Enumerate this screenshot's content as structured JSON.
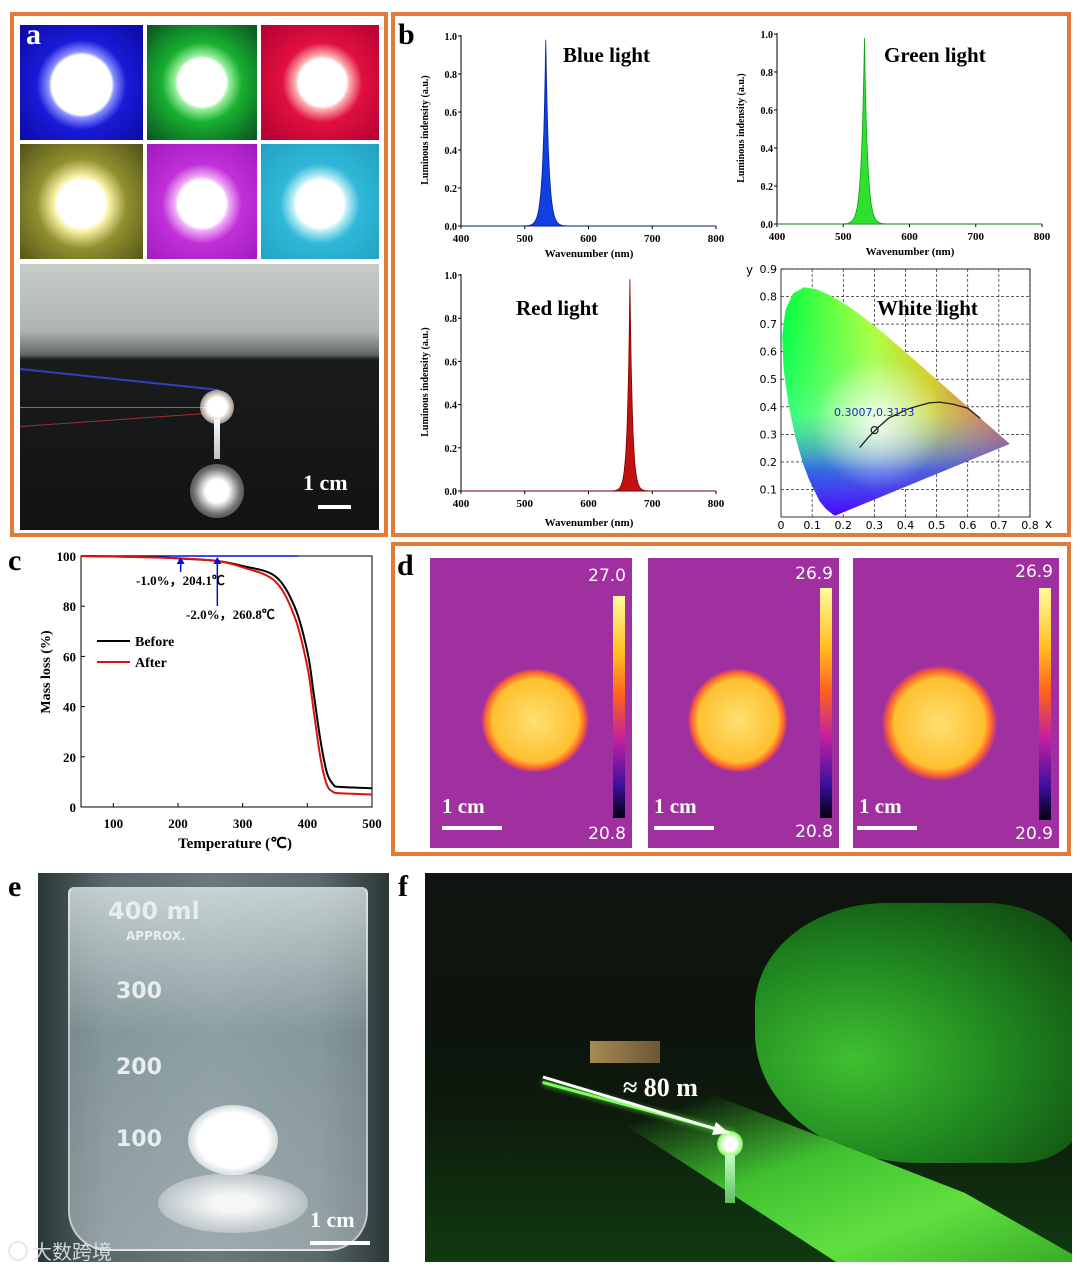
{
  "panels": {
    "a": {
      "label": "a",
      "scale": "1 cm"
    },
    "b": {
      "label": "b",
      "blue": {
        "title": "Blue light",
        "ylabel": "Luminous indensity (a.u.)",
        "xlabel": "Wavenumber (nm)"
      },
      "green": {
        "title": "Green light",
        "ylabel": "Luminous indensity (a.u.)",
        "xlabel": "Wavenumber (nm)"
      },
      "red": {
        "title": "Red light",
        "ylabel": "Luminous indensity (a.u.)",
        "xlabel": "Wavenumber (nm)"
      },
      "white": {
        "title": "White light",
        "coord": "0.3007,0.3153",
        "yaxis": "y",
        "xaxis": "x"
      }
    },
    "c": {
      "label": "c",
      "ylabel": "Mass loss (%)",
      "xlabel": "Temperature (℃)",
      "legend_before": "Before",
      "legend_after": "After",
      "ann1": "-1.0%，204.1℃",
      "ann2": "-2.0%，260.8℃"
    },
    "d": {
      "label": "d",
      "scale": "1 cm",
      "maps": [
        {
          "max": "27.0",
          "min": "20.8"
        },
        {
          "max": "26.9",
          "min": "20.8"
        },
        {
          "max": "26.9",
          "min": "20.9"
        }
      ]
    },
    "e": {
      "label": "e",
      "scale": "1 cm",
      "marks": [
        "400 ml",
        "APPROX.",
        "300",
        "200",
        "100"
      ]
    },
    "f": {
      "label": "f",
      "distance": "≈ 80 m"
    }
  },
  "watermark": "大数跨境",
  "colors": {
    "border": "#e07b39",
    "blue": "#1040e0",
    "green": "#30e030",
    "red": "#c01010"
  },
  "chart_data": [
    {
      "type": "line",
      "title": "Blue light",
      "xlabel": "Wavenumber (nm)",
      "ylabel": "Luminous indensity (a.u.)",
      "xlim": [
        400,
        800
      ],
      "ylim": [
        0,
        1.0
      ],
      "xticks": [
        "400",
        "500",
        "600",
        "700",
        "800"
      ],
      "yticks": [
        "0.0",
        "0.2",
        "0.4",
        "0.6",
        "0.8",
        "1.0"
      ],
      "series": [
        {
          "name": "Blue light",
          "peak": 533,
          "fwhm": 12,
          "height": 0.98
        }
      ]
    },
    {
      "type": "line",
      "title": "Green light",
      "xlabel": "Wavenumber (nm)",
      "ylabel": "Luminous indensity (a.u.)",
      "xlim": [
        400,
        800
      ],
      "ylim": [
        0,
        1.0
      ],
      "xticks": [
        "400",
        "500",
        "600",
        "700",
        "800"
      ],
      "yticks": [
        "0.0",
        "0.2",
        "0.4",
        "0.6",
        "0.8",
        "1.0"
      ],
      "series": [
        {
          "name": "Green light",
          "peak": 532,
          "fwhm": 12,
          "height": 0.98
        }
      ]
    },
    {
      "type": "line",
      "title": "Red light",
      "xlabel": "Wavenumber (nm)",
      "ylabel": "Luminous indensity (a.u.)",
      "xlim": [
        400,
        800
      ],
      "ylim": [
        0,
        1.0
      ],
      "xticks": [
        "400",
        "500",
        "600",
        "700",
        "800"
      ],
      "yticks": [
        "0.0",
        "0.2",
        "0.4",
        "0.6",
        "0.8",
        "1.0"
      ],
      "series": [
        {
          "name": "Red light",
          "peak": 665,
          "fwhm": 10,
          "height": 0.98
        }
      ]
    },
    {
      "type": "scatter",
      "title": "White light",
      "xlim": [
        0,
        0.8
      ],
      "ylim": [
        0,
        0.9
      ],
      "xticks": [
        "0",
        "0.1",
        "0.2",
        "0.3",
        "0.4",
        "0.5",
        "0.6",
        "0.7",
        "0.8"
      ],
      "yticks": [
        "0.1",
        "0.2",
        "0.3",
        "0.4",
        "0.5",
        "0.6",
        "0.7",
        "0.8",
        "0.9"
      ],
      "point": {
        "x": 0.3007,
        "y": 0.3153
      }
    },
    {
      "type": "line",
      "xlabel": "Temperature (℃)",
      "ylabel": "Mass loss (%)",
      "xlim": [
        50,
        500
      ],
      "ylim": [
        0,
        100
      ],
      "xticks": [
        "100",
        "200",
        "300",
        "400",
        "500"
      ],
      "yticks": [
        "0",
        "20",
        "40",
        "60",
        "80",
        "100"
      ],
      "series": [
        {
          "name": "Before",
          "x": [
            50,
            150,
            204,
            261,
            300,
            350,
            380,
            400,
            410,
            420,
            430,
            440,
            450,
            500
          ],
          "y": [
            100,
            99.6,
            99,
            98,
            96,
            92,
            80,
            62,
            45,
            27,
            14,
            9,
            8,
            7.5
          ]
        },
        {
          "name": "After",
          "x": [
            50,
            150,
            204,
            261,
            300,
            350,
            380,
            400,
            410,
            420,
            430,
            440,
            450,
            500
          ],
          "y": [
            100,
            99.5,
            99,
            98,
            95.5,
            90,
            76,
            56,
            38,
            20,
            9,
            6,
            5.5,
            5
          ]
        }
      ],
      "baseline": 100,
      "annotations": [
        {
          "x": 204.1,
          "text": "-1.0%，204.1℃"
        },
        {
          "x": 260.8,
          "text": "-2.0%，260.8℃"
        }
      ]
    }
  ]
}
